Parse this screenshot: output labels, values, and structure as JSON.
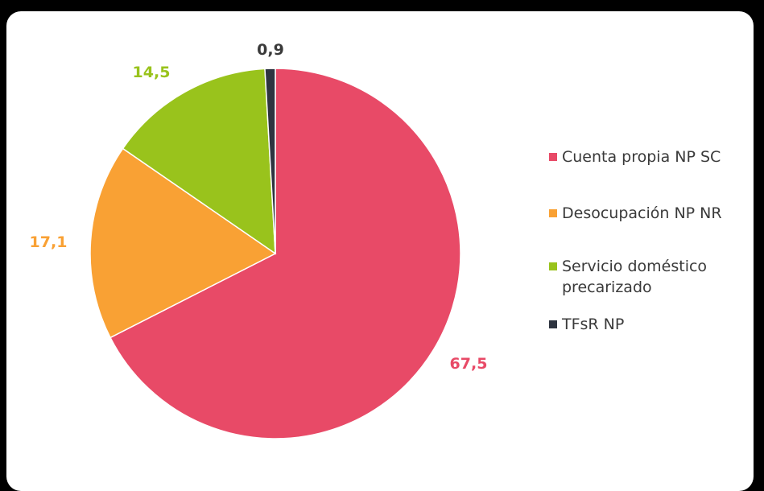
{
  "chart_data": {
    "type": "pie",
    "title": "",
    "start_angle_deg": 0,
    "direction": "clockwise",
    "slices": [
      {
        "label": "Cuenta propia NP SC",
        "value": 67.5,
        "display": "67,5",
        "color": "#E84A67"
      },
      {
        "label": "Desocupación NP NR",
        "value": 17.1,
        "display": "17,1",
        "color": "#F9A134"
      },
      {
        "label": "Servicio doméstico precarizado",
        "value": 14.5,
        "display": "14,5",
        "color": "#99C31C"
      },
      {
        "label": "TFsR NP",
        "value": 0.9,
        "display": "0,9",
        "color": "#2E3440"
      }
    ],
    "legend": {
      "placement": "right",
      "entries": [
        {
          "line1": "Cuenta propia NP SC",
          "line2": ""
        },
        {
          "line1": "Desocupación NP NR",
          "line2": ""
        },
        {
          "line1": "Servicio doméstico",
          "line2": "precarizado"
        },
        {
          "line1": "TFsR NP",
          "line2": ""
        }
      ]
    }
  }
}
